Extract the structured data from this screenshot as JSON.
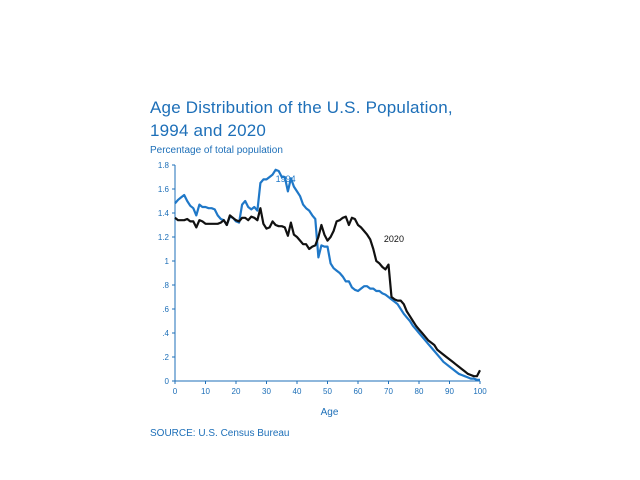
{
  "chart_data": {
    "type": "line",
    "title_line1": "Age Distribution of the U.S. Population,",
    "title_line2": "1994 and 2020",
    "ylabel": "Percentage of total population",
    "xlabel": "Age",
    "source": "SOURCE: U.S. Census Bureau",
    "xlim": [
      0,
      100
    ],
    "ylim": [
      0,
      1.8
    ],
    "xticks": [
      0,
      10,
      20,
      30,
      40,
      50,
      60,
      70,
      80,
      90,
      100
    ],
    "xtick_labels": [
      "0",
      "10",
      "20",
      "30",
      "40",
      "50",
      "60",
      "70",
      "80",
      "90",
      "100"
    ],
    "yticks": [
      0,
      0.2,
      0.4,
      0.6,
      0.8,
      1.0,
      1.2,
      1.4,
      1.6,
      1.8
    ],
    "ytick_labels": [
      "0",
      ".2",
      ".4",
      ".6",
      ".8",
      "1",
      "1.2",
      "1.4",
      "1.6",
      "1.8"
    ],
    "colors": {
      "text": "#1d6fb8",
      "axis": "#1d6fb8"
    },
    "series": [
      {
        "name": "1994",
        "color": "#1f78c8",
        "label_at": [
          33,
          1.66
        ],
        "x": [
          0,
          1,
          2,
          3,
          4,
          5,
          6,
          7,
          8,
          9,
          10,
          11,
          12,
          13,
          14,
          15,
          16,
          17,
          18,
          19,
          20,
          21,
          22,
          23,
          24,
          25,
          26,
          27,
          28,
          29,
          30,
          31,
          32,
          33,
          34,
          35,
          36,
          37,
          38,
          39,
          40,
          41,
          42,
          43,
          44,
          45,
          46,
          47,
          48,
          49,
          50,
          51,
          52,
          53,
          54,
          55,
          56,
          57,
          58,
          59,
          60,
          61,
          62,
          63,
          64,
          65,
          66,
          67,
          68,
          69,
          70,
          71,
          72,
          73,
          74,
          75,
          76,
          77,
          78,
          79,
          80,
          81,
          82,
          83,
          84,
          85,
          86,
          87,
          88,
          89,
          90,
          91,
          92,
          93,
          94,
          95,
          96,
          97,
          98,
          99,
          100
        ],
        "y": [
          1.48,
          1.51,
          1.53,
          1.55,
          1.5,
          1.46,
          1.44,
          1.38,
          1.47,
          1.45,
          1.45,
          1.44,
          1.44,
          1.43,
          1.38,
          1.35,
          1.34,
          1.3,
          1.37,
          1.36,
          1.33,
          1.32,
          1.47,
          1.5,
          1.45,
          1.43,
          1.45,
          1.42,
          1.65,
          1.68,
          1.68,
          1.7,
          1.72,
          1.76,
          1.75,
          1.7,
          1.7,
          1.58,
          1.69,
          1.62,
          1.58,
          1.54,
          1.47,
          1.44,
          1.42,
          1.38,
          1.35,
          1.03,
          1.13,
          1.12,
          1.12,
          0.98,
          0.94,
          0.92,
          0.9,
          0.87,
          0.83,
          0.83,
          0.78,
          0.76,
          0.75,
          0.77,
          0.79,
          0.79,
          0.77,
          0.77,
          0.75,
          0.75,
          0.73,
          0.72,
          0.7,
          0.68,
          0.66,
          0.64,
          0.6,
          0.56,
          0.53,
          0.5,
          0.46,
          0.43,
          0.4,
          0.37,
          0.34,
          0.31,
          0.28,
          0.25,
          0.22,
          0.19,
          0.16,
          0.14,
          0.12,
          0.1,
          0.08,
          0.06,
          0.05,
          0.04,
          0.03,
          0.02,
          0.02,
          0.01,
          0.01
        ]
      },
      {
        "name": "2020",
        "color": "#111111",
        "label_at": [
          68.5,
          1.16
        ],
        "x": [
          0,
          1,
          2,
          3,
          4,
          5,
          6,
          7,
          8,
          9,
          10,
          11,
          12,
          13,
          14,
          15,
          16,
          17,
          18,
          19,
          20,
          21,
          22,
          23,
          24,
          25,
          26,
          27,
          28,
          29,
          30,
          31,
          32,
          33,
          34,
          35,
          36,
          37,
          38,
          39,
          40,
          41,
          42,
          43,
          44,
          45,
          46,
          47,
          48,
          49,
          50,
          51,
          52,
          53,
          54,
          55,
          56,
          57,
          58,
          59,
          60,
          61,
          62,
          63,
          64,
          65,
          66,
          67,
          68,
          69,
          70,
          71,
          72,
          73,
          74,
          75,
          76,
          77,
          78,
          79,
          80,
          81,
          82,
          83,
          84,
          85,
          86,
          87,
          88,
          89,
          90,
          91,
          92,
          93,
          94,
          95,
          96,
          97,
          98,
          99,
          100
        ],
        "y": [
          1.36,
          1.34,
          1.34,
          1.34,
          1.35,
          1.33,
          1.33,
          1.28,
          1.34,
          1.33,
          1.31,
          1.31,
          1.31,
          1.31,
          1.31,
          1.32,
          1.34,
          1.3,
          1.38,
          1.36,
          1.34,
          1.33,
          1.36,
          1.36,
          1.34,
          1.37,
          1.36,
          1.34,
          1.44,
          1.31,
          1.27,
          1.28,
          1.33,
          1.3,
          1.29,
          1.29,
          1.28,
          1.21,
          1.32,
          1.22,
          1.2,
          1.17,
          1.14,
          1.14,
          1.1,
          1.12,
          1.13,
          1.2,
          1.3,
          1.22,
          1.17,
          1.2,
          1.25,
          1.33,
          1.34,
          1.36,
          1.37,
          1.3,
          1.36,
          1.35,
          1.3,
          1.28,
          1.25,
          1.22,
          1.18,
          1.1,
          1.0,
          0.98,
          0.95,
          0.93,
          0.97,
          0.7,
          0.68,
          0.67,
          0.67,
          0.64,
          0.58,
          0.54,
          0.5,
          0.46,
          0.43,
          0.4,
          0.37,
          0.34,
          0.32,
          0.3,
          0.26,
          0.24,
          0.22,
          0.2,
          0.18,
          0.16,
          0.14,
          0.12,
          0.1,
          0.08,
          0.06,
          0.05,
          0.04,
          0.04,
          0.09
        ]
      }
    ]
  }
}
